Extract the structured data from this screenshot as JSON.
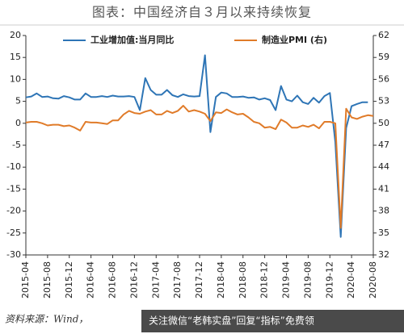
{
  "chart_data": {
    "type": "line",
    "title": "图表：中国经济自３月以来持续恢复",
    "source": "资料来源：Wind，",
    "watermark": "关注微信“老韩实盘”回复“指标”免费领",
    "categories": [
      "2015-04",
      null,
      null,
      null,
      "2015-08",
      null,
      null,
      null,
      "2015-12",
      null,
      null,
      null,
      "2016-04",
      null,
      null,
      null,
      "2016-08",
      null,
      null,
      null,
      "2016-12",
      null,
      null,
      null,
      "2017-04",
      null,
      null,
      null,
      "2017-08",
      null,
      null,
      null,
      "2017-12",
      null,
      null,
      null,
      "2018-04",
      null,
      null,
      null,
      "2018-08",
      null,
      null,
      null,
      "2018-12",
      null,
      null,
      null,
      "2019-04",
      null,
      null,
      null,
      "2019-08",
      null,
      null,
      null,
      "2019-12",
      null,
      null,
      null,
      "2020-04",
      null,
      null,
      null,
      "2020-08"
    ],
    "series": [
      {
        "name": "工业增加值:当月同比",
        "color": "#2e75b6",
        "axis": "y",
        "values": [
          5.9,
          6.1,
          6.8,
          6.0,
          6.1,
          5.7,
          5.6,
          6.2,
          5.9,
          5.4,
          5.4,
          6.8,
          6.0,
          6.0,
          6.2,
          6.0,
          6.3,
          6.1,
          6.1,
          6.2,
          6.0,
          3.0,
          10.3,
          7.6,
          6.5,
          6.5,
          7.6,
          6.4,
          6.0,
          6.6,
          6.2,
          6.1,
          6.2,
          15.5,
          -2.0,
          6.0,
          7.0,
          6.8,
          6.0,
          6.0,
          6.1,
          5.8,
          5.9,
          5.4,
          5.7,
          5.3,
          3.0,
          8.5,
          5.4,
          5.0,
          6.3,
          4.8,
          4.4,
          5.8,
          4.7,
          6.2,
          6.9,
          -4.3,
          -25.9,
          -1.1,
          3.9,
          4.4,
          4.8,
          4.8,
          null
        ]
      },
      {
        "name": "制造业PMI (右)",
        "color": "#e07b29",
        "axis": "y2",
        "values": [
          50.1,
          50.2,
          50.2,
          50.0,
          49.7,
          49.8,
          49.8,
          49.6,
          49.7,
          49.4,
          49.0,
          50.2,
          50.1,
          50.1,
          50.0,
          49.9,
          50.4,
          50.4,
          51.2,
          51.7,
          51.4,
          51.3,
          51.6,
          51.8,
          51.2,
          51.2,
          51.7,
          51.4,
          51.7,
          52.4,
          51.6,
          51.8,
          51.6,
          51.3,
          50.3,
          51.5,
          51.4,
          51.9,
          51.5,
          51.2,
          51.3,
          50.8,
          50.2,
          50.0,
          49.4,
          49.5,
          49.2,
          50.5,
          50.1,
          49.4,
          49.4,
          49.7,
          49.5,
          49.8,
          49.3,
          50.2,
          50.2,
          50.0,
          35.7,
          52.0,
          50.8,
          50.6,
          50.9,
          51.1,
          51.0
        ]
      }
    ],
    "ylim": [
      -30,
      20
    ],
    "yticks": [
      -30,
      -25,
      -20,
      -15,
      -10,
      -5,
      0,
      5,
      10,
      15,
      20
    ],
    "y2lim": [
      32,
      62
    ],
    "y2ticks": [
      32,
      35,
      38,
      41,
      44,
      47,
      50,
      53,
      56,
      59,
      62
    ]
  }
}
